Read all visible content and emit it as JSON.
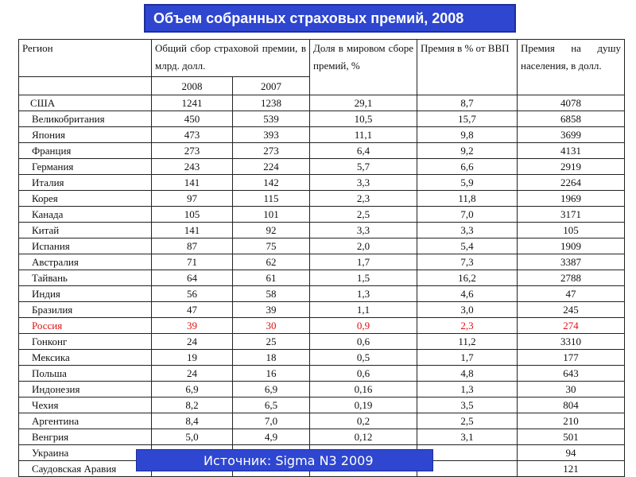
{
  "title": "Объем собранных страховых премий, 2008",
  "source": "Источник: Sigma N3 2009",
  "headers": {
    "region": "Регион",
    "premiums": "Общий сбор страховой премии, в млрд. долл.",
    "share": "Доля в мировом сборе премий, %",
    "gdp": "Премия в % от ВВП",
    "per_capita": "Премия на душу населения, в долл.",
    "year1": "2008",
    "year2": "2007"
  },
  "rows": [
    {
      "region": "США",
      "p2008": "1241",
      "p2007": "1238",
      "share": "29,1",
      "gdp": "8,7",
      "per_capita": "4078"
    },
    {
      "region": "Великобритания",
      "p2008": "450",
      "p2007": "539",
      "share": "10,5",
      "gdp": "15,7",
      "per_capita": "6858"
    },
    {
      "region": "Япония",
      "p2008": "473",
      "p2007": "393",
      "share": "11,1",
      "gdp": "9,8",
      "per_capita": "3699"
    },
    {
      "region": "Франция",
      "p2008": "273",
      "p2007": "273",
      "share": "6,4",
      "gdp": "9,2",
      "per_capita": "4131"
    },
    {
      "region": "Германия",
      "p2008": "243",
      "p2007": "224",
      "share": "5,7",
      "gdp": "6,6",
      "per_capita": "2919"
    },
    {
      "region": "Италия",
      "p2008": "141",
      "p2007": "142",
      "share": "3,3",
      "gdp": "5,9",
      "per_capita": "2264"
    },
    {
      "region": "Корея",
      "p2008": "97",
      "p2007": "115",
      "share": "2,3",
      "gdp": "11,8",
      "per_capita": "1969"
    },
    {
      "region": "Канада",
      "p2008": "105",
      "p2007": "101",
      "share": "2,5",
      "gdp": "7,0",
      "per_capita": "3171"
    },
    {
      "region": "Китай",
      "p2008": "141",
      "p2007": "92",
      "share": "3,3",
      "gdp": "3,3",
      "per_capita": "105"
    },
    {
      "region": "Испания",
      "p2008": "87",
      "p2007": "75",
      "share": "2,0",
      "gdp": "5,4",
      "per_capita": "1909"
    },
    {
      "region": "Австралия",
      "p2008": "71",
      "p2007": "62",
      "share": "1,7",
      "gdp": "7,3",
      "per_capita": "3387"
    },
    {
      "region": "Тайвань",
      "p2008": "64",
      "p2007": "61",
      "share": "1,5",
      "gdp": "16,2",
      "per_capita": "2788"
    },
    {
      "region": "Индия",
      "p2008": "56",
      "p2007": "58",
      "share": "1,3",
      "gdp": "4,6",
      "per_capita": "47"
    },
    {
      "region": "Бразилия",
      "p2008": "47",
      "p2007": "39",
      "share": "1,1",
      "gdp": "3,0",
      "per_capita": "245"
    },
    {
      "region": "Россия",
      "p2008": "39",
      "p2007": "30",
      "share": "0,9",
      "gdp": "2,3",
      "per_capita": "274"
    },
    {
      "region": "Гонконг",
      "p2008": "24",
      "p2007": "25",
      "share": "0,6",
      "gdp": "11,2",
      "per_capita": "3310"
    },
    {
      "region": "Мексика",
      "p2008": "19",
      "p2007": "18",
      "share": "0,5",
      "gdp": "1,7",
      "per_capita": "177"
    },
    {
      "region": "Польша",
      "p2008": "24",
      "p2007": "16",
      "share": "0,6",
      "gdp": "4,8",
      "per_capita": "643"
    },
    {
      "region": "Индонезия",
      "p2008": "6,9",
      "p2007": "6,9",
      "share": "0,16",
      "gdp": "1,3",
      "per_capita": "30"
    },
    {
      "region": "Чехия",
      "p2008": "8,2",
      "p2007": "6,5",
      "share": "0,19",
      "gdp": "3,5",
      "per_capita": "804"
    },
    {
      "region": "Аргентина",
      "p2008": "8,4",
      "p2007": "7,0",
      "share": "0,2",
      "gdp": "2,5",
      "per_capita": "210"
    },
    {
      "region": "Венгрия",
      "p2008": "5,0",
      "p2007": "4,9",
      "share": "0,12",
      "gdp": "3,1",
      "per_capita": "501"
    },
    {
      "region": "Украина",
      "p2008": "",
      "p2007": "",
      "share": "",
      "gdp": "",
      "per_capita": "94"
    },
    {
      "region": "Саудовская Аравия",
      "p2008": "",
      "p2007": "",
      "share": "",
      "gdp": "",
      "per_capita": "121"
    }
  ],
  "highlight_color": "#e01010",
  "banner_color": "#2e46d0"
}
